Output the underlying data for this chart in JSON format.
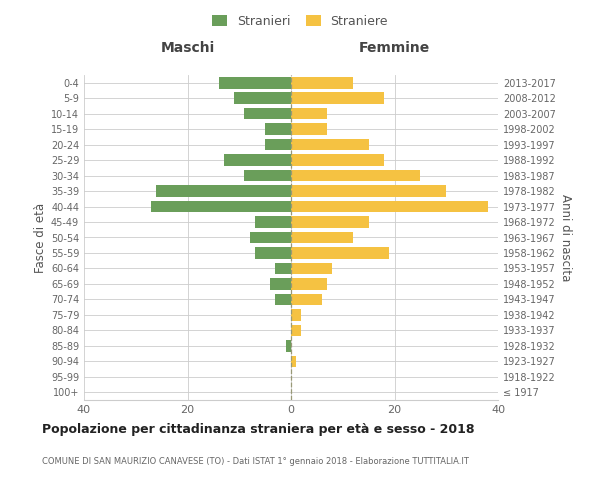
{
  "age_groups": [
    "100+",
    "95-99",
    "90-94",
    "85-89",
    "80-84",
    "75-79",
    "70-74",
    "65-69",
    "60-64",
    "55-59",
    "50-54",
    "45-49",
    "40-44",
    "35-39",
    "30-34",
    "25-29",
    "20-24",
    "15-19",
    "10-14",
    "5-9",
    "0-4"
  ],
  "birth_years": [
    "≤ 1917",
    "1918-1922",
    "1923-1927",
    "1928-1932",
    "1933-1937",
    "1938-1942",
    "1943-1947",
    "1948-1952",
    "1953-1957",
    "1958-1962",
    "1963-1967",
    "1968-1972",
    "1973-1977",
    "1978-1982",
    "1983-1987",
    "1988-1992",
    "1993-1997",
    "1998-2002",
    "2003-2007",
    "2008-2012",
    "2013-2017"
  ],
  "males": [
    0,
    0,
    0,
    1,
    0,
    0,
    3,
    4,
    3,
    7,
    8,
    7,
    27,
    26,
    9,
    13,
    5,
    5,
    9,
    11,
    14
  ],
  "females": [
    0,
    0,
    1,
    0,
    2,
    2,
    6,
    7,
    8,
    19,
    12,
    15,
    38,
    30,
    25,
    18,
    15,
    7,
    7,
    18,
    12
  ],
  "male_color": "#6a9e5a",
  "female_color": "#f5c242",
  "background_color": "#ffffff",
  "grid_color": "#cccccc",
  "title": "Popolazione per cittadinanza straniera per età e sesso - 2018",
  "subtitle": "COMUNE DI SAN MAURIZIO CANAVESE (TO) - Dati ISTAT 1° gennaio 2018 - Elaborazione TUTTITALIA.IT",
  "ylabel_left": "Fasce di età",
  "ylabel_right": "Anni di nascita",
  "label_maschi": "Maschi",
  "label_femmine": "Femmine",
  "legend_male": "Stranieri",
  "legend_female": "Straniere",
  "xlim": 40,
  "bar_height": 0.75
}
